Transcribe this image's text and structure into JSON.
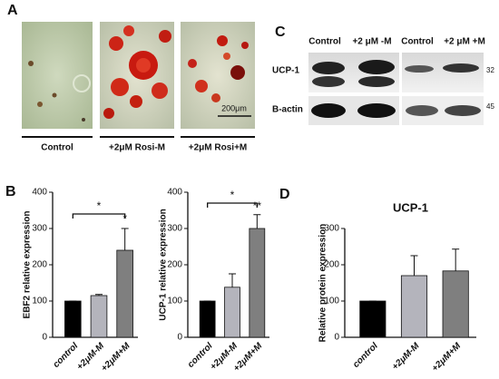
{
  "panels": {
    "a": {
      "label": "A",
      "captions": [
        "Control",
        "+2μM Rosi-M",
        "+2μM Rosi+M"
      ],
      "scale_bar": "200μm"
    },
    "b": {
      "label": "B"
    },
    "c": {
      "label": "C",
      "columns": [
        "Control",
        "+2 μM -M",
        "Control",
        "+2 μM +M"
      ],
      "rows": [
        "UCP-1",
        "B-actin"
      ],
      "markers": [
        "32",
        "45"
      ]
    },
    "d": {
      "label": "D"
    }
  },
  "chart_data": [
    {
      "type": "bar",
      "ylabel": "EBF2 relative expression",
      "categories": [
        "control",
        "+2μM-M",
        "+2μM+M"
      ],
      "values": [
        100,
        115,
        240
      ],
      "errors": [
        0,
        3,
        60
      ],
      "colors": [
        "#000000",
        "#b4b4bc",
        "#7f7f7f"
      ],
      "ylim": [
        0,
        400
      ],
      "yticks": [
        0,
        100,
        200,
        300,
        400
      ],
      "annotations": [
        "*",
        "*"
      ]
    },
    {
      "type": "bar",
      "ylabel": "UCP-1 relative expression",
      "categories": [
        "control",
        "+2μM-M",
        "+2μM+M"
      ],
      "values": [
        100,
        138,
        300
      ],
      "errors": [
        0,
        37,
        38
      ],
      "colors": [
        "#000000",
        "#b4b4bc",
        "#7f7f7f"
      ],
      "ylim": [
        0,
        400
      ],
      "yticks": [
        0,
        100,
        200,
        300,
        400
      ],
      "annotations": [
        "*",
        "**"
      ]
    },
    {
      "type": "bar",
      "title": "UCP-1",
      "ylabel": "Relative protein expression",
      "categories": [
        "control",
        "+2μM-M",
        "+2μM+M"
      ],
      "values": [
        100,
        170,
        183
      ],
      "errors": [
        0,
        55,
        60
      ],
      "colors": [
        "#000000",
        "#b4b4bc",
        "#7f7f7f"
      ],
      "ylim": [
        0,
        300
      ],
      "yticks": [
        0,
        100,
        200,
        300
      ]
    }
  ]
}
